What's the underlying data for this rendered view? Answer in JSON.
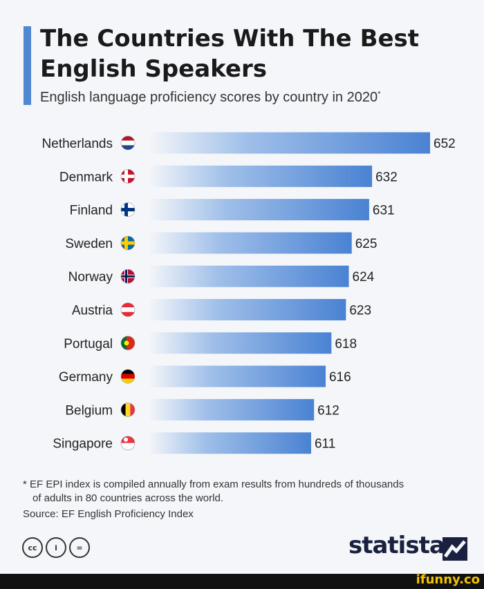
{
  "header": {
    "title": "The Countries With The Best English Speakers",
    "subtitle": "English language proficiency scores by country in 2020",
    "subtitle_mark": "*"
  },
  "chart_data": {
    "type": "bar",
    "orientation": "horizontal",
    "title": "The Countries With The Best English Speakers",
    "subtitle": "English language proficiency scores by country in 2020*",
    "categories": [
      "Netherlands",
      "Denmark",
      "Finland",
      "Sweden",
      "Norway",
      "Austria",
      "Portugal",
      "Germany",
      "Belgium",
      "Singapore"
    ],
    "values": [
      652,
      632,
      631,
      625,
      624,
      623,
      618,
      616,
      612,
      611
    ],
    "data_labels": [
      "652",
      "632",
      "631",
      "625",
      "624",
      "623",
      "618",
      "616",
      "612",
      "611"
    ],
    "flags": [
      "netherlands-flag-icon",
      "denmark-flag-icon",
      "finland-flag-icon",
      "sweden-flag-icon",
      "norway-flag-icon",
      "austria-flag-icon",
      "portugal-flag-icon",
      "germany-flag-icon",
      "belgium-flag-icon",
      "singapore-flag-icon"
    ],
    "bar_color": "#4a82d3",
    "grid": false
  },
  "footer": {
    "note_line1": "* EF EPI index is compiled annually from exam results from hundreds of thousands",
    "note_line2": "of adults in 80 countries across the world.",
    "source": "Source: EF English Proficiency Index",
    "cc_labels": [
      "cc",
      "i",
      "="
    ],
    "brand": "statista",
    "watermark": "ifunny.co"
  },
  "colors": {
    "accent": "#4f87d0",
    "brand": "#1a2140"
  }
}
